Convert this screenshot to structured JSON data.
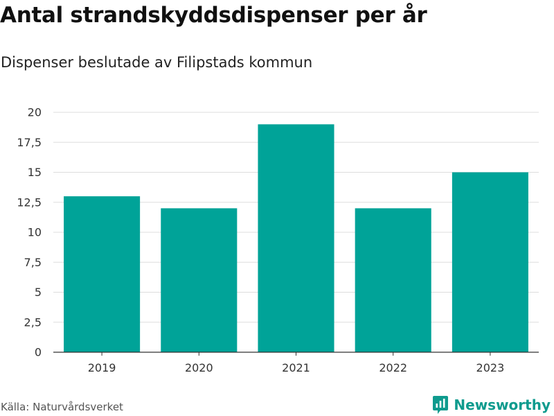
{
  "chart_data": {
    "type": "bar",
    "title": "Antal strandskyddsdispenser per år",
    "subtitle": "Dispenser beslutade av Filipstads kommun",
    "categories": [
      "2019",
      "2020",
      "2021",
      "2022",
      "2023"
    ],
    "values": [
      13,
      12,
      19,
      12,
      15
    ],
    "ylim": [
      0,
      20
    ],
    "yticks": [
      0,
      2.5,
      5,
      7.5,
      10,
      12.5,
      15,
      17.5,
      20
    ],
    "ytick_labels": [
      "0",
      "2,5",
      "5",
      "7,5",
      "10",
      "12,5",
      "15",
      "17,5",
      "20"
    ],
    "xlabel": "",
    "ylabel": "",
    "grid": true,
    "bar_color": "#00a398"
  },
  "footer": {
    "source": "Källa: Naturvårdsverket",
    "brand": "Newsworthy",
    "brand_color": "#0f9b8e"
  }
}
